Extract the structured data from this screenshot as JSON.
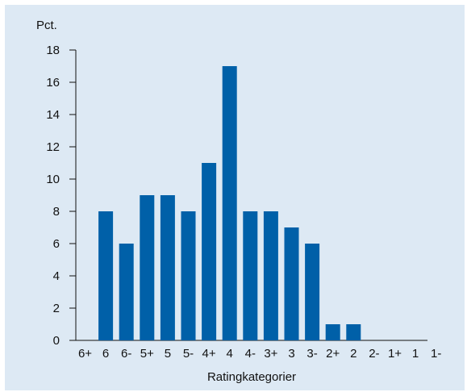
{
  "chart_data": {
    "type": "bar",
    "title": "",
    "ylabel": "Pct.",
    "xlabel": "Ratingkategorier",
    "ylim": [
      0,
      18
    ],
    "yticks": [
      0,
      2,
      4,
      6,
      8,
      10,
      12,
      14,
      16,
      18
    ],
    "categories": [
      "6+",
      "6",
      "6-",
      "5+",
      "5",
      "5-",
      "4+",
      "4",
      "4-",
      "3+",
      "3",
      "3-",
      "2+",
      "2",
      "2-",
      "1+",
      "1",
      "1-"
    ],
    "values": [
      0,
      8,
      6,
      9,
      9,
      8,
      11,
      17,
      8,
      8,
      7,
      6,
      1,
      1,
      0,
      0,
      0,
      0
    ],
    "bar_color": "#0060a8",
    "background_color": "#dde9f4",
    "grid": false,
    "legend": "none"
  }
}
